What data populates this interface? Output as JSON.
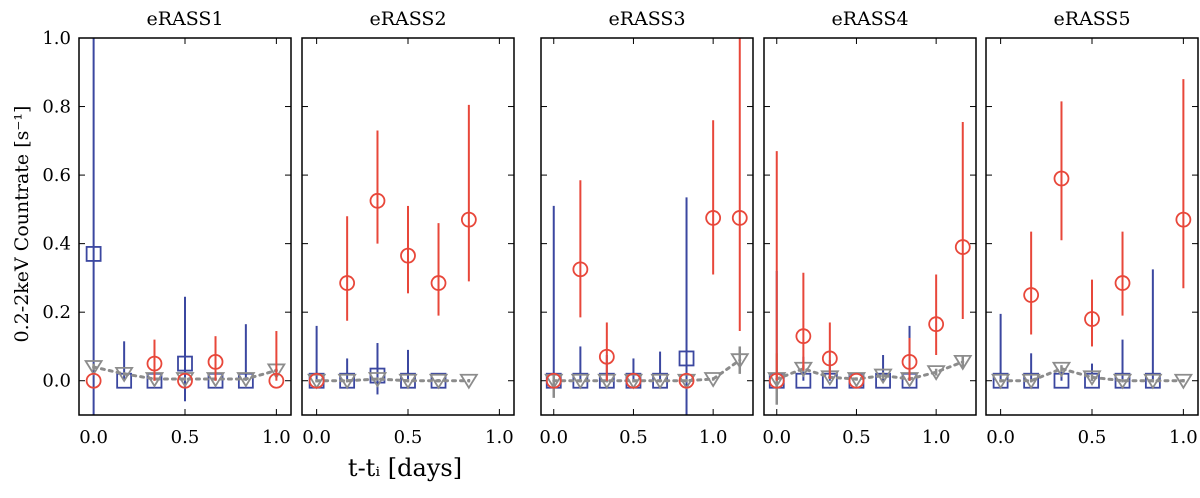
{
  "chart_data": {
    "type": "scatter",
    "ylabel": "0.2-2keV Countrate [s⁻¹]",
    "xlabel": "t-tᵢ [days]",
    "ylim": [
      -0.1,
      1.0
    ],
    "yticks": [
      0.0,
      0.2,
      0.4,
      0.6,
      0.8,
      1.0
    ],
    "ytick_labels": [
      "0.0",
      "0.2",
      "0.4",
      "0.6",
      "0.8",
      "1.0"
    ],
    "colors": {
      "red": "#e8473a",
      "blue": "#3b47a0",
      "gray": "#8c8c8c"
    },
    "panels": [
      {
        "title": "eRASS1",
        "xlim": [
          -0.08,
          1.08
        ],
        "xticks": [
          0.0,
          0.5,
          1.0
        ],
        "xtick_labels": [
          "0.0",
          "0.5",
          "1.0"
        ],
        "series": [
          {
            "name": "red",
            "marker": "circle",
            "points": [
              {
                "x": 0.0,
                "y": 0.0,
                "lo": 0.0,
                "hi": 0.0
              },
              {
                "x": 0.333,
                "y": 0.05,
                "lo": 0.0,
                "hi": 0.12
              },
              {
                "x": 0.5,
                "y": 0.0,
                "lo": 0.0,
                "hi": 0.0
              },
              {
                "x": 0.667,
                "y": 0.055,
                "lo": 0.0,
                "hi": 0.13
              },
              {
                "x": 1.0,
                "y": 0.0,
                "lo": 0.0,
                "hi": 0.145
              }
            ]
          },
          {
            "name": "blue",
            "marker": "square",
            "points": [
              {
                "x": 0.0,
                "y": 0.37,
                "lo": -0.1,
                "hi": 1.0
              },
              {
                "x": 0.167,
                "y": 0.0,
                "lo": 0.0,
                "hi": 0.115
              },
              {
                "x": 0.333,
                "y": 0.0,
                "lo": 0.0,
                "hi": 0.0
              },
              {
                "x": 0.5,
                "y": 0.05,
                "lo": -0.06,
                "hi": 0.245
              },
              {
                "x": 0.667,
                "y": 0.0,
                "lo": 0.0,
                "hi": 0.0
              },
              {
                "x": 0.833,
                "y": 0.0,
                "lo": 0.0,
                "hi": 0.165
              }
            ]
          },
          {
            "name": "gray",
            "marker": "triangle-down",
            "dotted": true,
            "points": [
              {
                "x": 0.0,
                "y": 0.04,
                "lo": 0.03,
                "hi": 0.05
              },
              {
                "x": 0.167,
                "y": 0.02,
                "lo": 0.015,
                "hi": 0.025
              },
              {
                "x": 0.333,
                "y": 0.005,
                "lo": 0.0,
                "hi": 0.01
              },
              {
                "x": 0.5,
                "y": 0.005,
                "lo": 0.0,
                "hi": 0.01
              },
              {
                "x": 0.667,
                "y": 0.005,
                "lo": 0.0,
                "hi": 0.01
              },
              {
                "x": 0.833,
                "y": 0.005,
                "lo": 0.0,
                "hi": 0.01
              },
              {
                "x": 1.0,
                "y": 0.03,
                "lo": 0.025,
                "hi": 0.035
              }
            ]
          }
        ]
      },
      {
        "title": "eRASS2",
        "xlim": [
          -0.08,
          1.08
        ],
        "xticks": [
          0.0,
          0.5,
          1.0
        ],
        "xtick_labels": [
          "0.0",
          "0.5",
          "1.0"
        ],
        "series": [
          {
            "name": "red",
            "marker": "circle",
            "points": [
              {
                "x": 0.0,
                "y": 0.0,
                "lo": 0.0,
                "hi": 0.0
              },
              {
                "x": 0.167,
                "y": 0.285,
                "lo": 0.175,
                "hi": 0.48
              },
              {
                "x": 0.333,
                "y": 0.525,
                "lo": 0.4,
                "hi": 0.73
              },
              {
                "x": 0.5,
                "y": 0.365,
                "lo": 0.255,
                "hi": 0.51
              },
              {
                "x": 0.667,
                "y": 0.285,
                "lo": 0.19,
                "hi": 0.46
              },
              {
                "x": 0.833,
                "y": 0.47,
                "lo": 0.29,
                "hi": 0.805
              }
            ]
          },
          {
            "name": "blue",
            "marker": "square",
            "points": [
              {
                "x": 0.0,
                "y": 0.0,
                "lo": 0.0,
                "hi": 0.16
              },
              {
                "x": 0.167,
                "y": 0.0,
                "lo": 0.0,
                "hi": 0.065
              },
              {
                "x": 0.333,
                "y": 0.015,
                "lo": -0.04,
                "hi": 0.11
              },
              {
                "x": 0.5,
                "y": 0.0,
                "lo": 0.0,
                "hi": 0.09
              },
              {
                "x": 0.667,
                "y": 0.0,
                "lo": 0.0,
                "hi": 0.0
              }
            ]
          },
          {
            "name": "gray",
            "marker": "triangle-down",
            "dotted": true,
            "points": [
              {
                "x": 0.0,
                "y": 0.0,
                "lo": -0.005,
                "hi": 0.005
              },
              {
                "x": 0.167,
                "y": 0.0,
                "lo": -0.005,
                "hi": 0.005
              },
              {
                "x": 0.333,
                "y": 0.005,
                "lo": 0.0,
                "hi": 0.01
              },
              {
                "x": 0.5,
                "y": 0.0,
                "lo": -0.005,
                "hi": 0.005
              },
              {
                "x": 0.667,
                "y": 0.0,
                "lo": -0.005,
                "hi": 0.005
              },
              {
                "x": 0.833,
                "y": 0.0,
                "lo": -0.005,
                "hi": 0.005
              }
            ]
          }
        ]
      },
      {
        "title": "eRASS3",
        "xlim": [
          -0.08,
          1.25
        ],
        "xticks": [
          0.0,
          0.5,
          1.0
        ],
        "xtick_labels": [
          "0.0",
          "0.5",
          "1.0"
        ],
        "series": [
          {
            "name": "red",
            "marker": "circle",
            "points": [
              {
                "x": 0.0,
                "y": 0.0,
                "lo": 0.0,
                "hi": 0.0
              },
              {
                "x": 0.167,
                "y": 0.325,
                "lo": 0.185,
                "hi": 0.585
              },
              {
                "x": 0.333,
                "y": 0.07,
                "lo": 0.0,
                "hi": 0.17
              },
              {
                "x": 0.5,
                "y": 0.0,
                "lo": 0.0,
                "hi": 0.0
              },
              {
                "x": 0.833,
                "y": 0.0,
                "lo": 0.0,
                "hi": 0.0
              },
              {
                "x": 1.0,
                "y": 0.475,
                "lo": 0.31,
                "hi": 0.76
              },
              {
                "x": 1.167,
                "y": 0.475,
                "lo": 0.145,
                "hi": 1.0
              }
            ]
          },
          {
            "name": "blue",
            "marker": "square",
            "points": [
              {
                "x": 0.0,
                "y": 0.0,
                "lo": 0.0,
                "hi": 0.51
              },
              {
                "x": 0.167,
                "y": 0.0,
                "lo": 0.0,
                "hi": 0.1
              },
              {
                "x": 0.333,
                "y": 0.0,
                "lo": 0.0,
                "hi": 0.075
              },
              {
                "x": 0.5,
                "y": 0.0,
                "lo": 0.0,
                "hi": 0.065
              },
              {
                "x": 0.667,
                "y": 0.0,
                "lo": 0.0,
                "hi": 0.085
              },
              {
                "x": 0.833,
                "y": 0.065,
                "lo": -0.1,
                "hi": 0.535
              }
            ]
          },
          {
            "name": "gray",
            "marker": "triangle-down",
            "dotted": true,
            "points": [
              {
                "x": 0.0,
                "y": 0.0,
                "lo": -0.05,
                "hi": 0.02
              },
              {
                "x": 0.167,
                "y": 0.0,
                "lo": -0.005,
                "hi": 0.005
              },
              {
                "x": 0.333,
                "y": 0.0,
                "lo": -0.005,
                "hi": 0.005
              },
              {
                "x": 0.5,
                "y": 0.0,
                "lo": -0.005,
                "hi": 0.005
              },
              {
                "x": 0.667,
                "y": 0.0,
                "lo": -0.005,
                "hi": 0.005
              },
              {
                "x": 0.833,
                "y": 0.0,
                "lo": -0.005,
                "hi": 0.005
              },
              {
                "x": 1.0,
                "y": 0.005,
                "lo": 0.0,
                "hi": 0.01
              },
              {
                "x": 1.167,
                "y": 0.06,
                "lo": 0.02,
                "hi": 0.1
              }
            ]
          }
        ]
      },
      {
        "title": "eRASS4",
        "xlim": [
          -0.08,
          1.25
        ],
        "xticks": [
          0.0,
          0.5,
          1.0
        ],
        "xtick_labels": [
          "0.0",
          "0.5",
          "1.0"
        ],
        "series": [
          {
            "name": "red",
            "marker": "circle",
            "points": [
              {
                "x": 0.0,
                "y": 0.0,
                "lo": 0.0,
                "hi": 0.67
              },
              {
                "x": 0.167,
                "y": 0.13,
                "lo": 0.03,
                "hi": 0.315
              },
              {
                "x": 0.333,
                "y": 0.065,
                "lo": 0.005,
                "hi": 0.17
              },
              {
                "x": 0.5,
                "y": 0.0,
                "lo": 0.0,
                "hi": 0.0
              },
              {
                "x": 0.833,
                "y": 0.055,
                "lo": 0.0,
                "hi": 0.125
              },
              {
                "x": 1.0,
                "y": 0.165,
                "lo": 0.075,
                "hi": 0.31
              },
              {
                "x": 1.167,
                "y": 0.39,
                "lo": 0.18,
                "hi": 0.755
              }
            ]
          },
          {
            "name": "blue",
            "marker": "square",
            "points": [
              {
                "x": 0.0,
                "y": 0.0,
                "lo": 0.0,
                "hi": 0.32
              },
              {
                "x": 0.167,
                "y": 0.0,
                "lo": 0.0,
                "hi": 0.07
              },
              {
                "x": 0.333,
                "y": 0.0,
                "lo": 0.0,
                "hi": 0.06
              },
              {
                "x": 0.5,
                "y": 0.0,
                "lo": 0.0,
                "hi": 0.0
              },
              {
                "x": 0.667,
                "y": 0.0,
                "lo": 0.0,
                "hi": 0.075
              },
              {
                "x": 0.833,
                "y": 0.0,
                "lo": 0.0,
                "hi": 0.16
              }
            ]
          },
          {
            "name": "gray",
            "marker": "triangle-down",
            "dotted": true,
            "points": [
              {
                "x": 0.0,
                "y": 0.005,
                "lo": -0.07,
                "hi": 0.08
              },
              {
                "x": 0.167,
                "y": 0.035,
                "lo": 0.025,
                "hi": 0.045
              },
              {
                "x": 0.333,
                "y": 0.01,
                "lo": 0.005,
                "hi": 0.015
              },
              {
                "x": 0.5,
                "y": 0.005,
                "lo": 0.0,
                "hi": 0.01
              },
              {
                "x": 0.667,
                "y": 0.015,
                "lo": 0.005,
                "hi": 0.025
              },
              {
                "x": 0.833,
                "y": 0.005,
                "lo": 0.0,
                "hi": 0.01
              },
              {
                "x": 1.0,
                "y": 0.025,
                "lo": 0.015,
                "hi": 0.035
              },
              {
                "x": 1.167,
                "y": 0.055,
                "lo": 0.035,
                "hi": 0.075
              }
            ]
          }
        ]
      },
      {
        "title": "eRASS5",
        "xlim": [
          -0.08,
          1.08
        ],
        "xticks": [
          0.0,
          0.5,
          1.0
        ],
        "xtick_labels": [
          "0.0",
          "0.5",
          "1.0"
        ],
        "series": [
          {
            "name": "red",
            "marker": "circle",
            "points": [
              {
                "x": 0.167,
                "y": 0.25,
                "lo": 0.135,
                "hi": 0.435
              },
              {
                "x": 0.333,
                "y": 0.59,
                "lo": 0.41,
                "hi": 0.815
              },
              {
                "x": 0.5,
                "y": 0.18,
                "lo": 0.1,
                "hi": 0.295
              },
              {
                "x": 0.667,
                "y": 0.285,
                "lo": 0.19,
                "hi": 0.435
              },
              {
                "x": 1.0,
                "y": 0.47,
                "lo": 0.27,
                "hi": 0.88
              }
            ]
          },
          {
            "name": "blue",
            "marker": "square",
            "points": [
              {
                "x": 0.0,
                "y": 0.0,
                "lo": 0.0,
                "hi": 0.195
              },
              {
                "x": 0.167,
                "y": 0.0,
                "lo": 0.0,
                "hi": 0.08
              },
              {
                "x": 0.333,
                "y": 0.0,
                "lo": 0.0,
                "hi": 0.045
              },
              {
                "x": 0.5,
                "y": 0.0,
                "lo": 0.0,
                "hi": 0.05
              },
              {
                "x": 0.667,
                "y": 0.0,
                "lo": 0.0,
                "hi": 0.12
              },
              {
                "x": 0.833,
                "y": 0.0,
                "lo": 0.0,
                "hi": 0.325
              }
            ]
          },
          {
            "name": "gray",
            "marker": "triangle-down",
            "dotted": true,
            "points": [
              {
                "x": 0.0,
                "y": 0.0,
                "lo": -0.005,
                "hi": 0.005
              },
              {
                "x": 0.167,
                "y": 0.0,
                "lo": -0.005,
                "hi": 0.005
              },
              {
                "x": 0.333,
                "y": 0.035,
                "lo": 0.025,
                "hi": 0.045
              },
              {
                "x": 0.5,
                "y": 0.01,
                "lo": 0.0,
                "hi": 0.02
              },
              {
                "x": 0.667,
                "y": 0.0,
                "lo": -0.005,
                "hi": 0.005
              },
              {
                "x": 0.833,
                "y": 0.0,
                "lo": -0.005,
                "hi": 0.005
              },
              {
                "x": 1.0,
                "y": 0.0,
                "lo": -0.005,
                "hi": 0.005
              }
            ]
          }
        ]
      }
    ]
  }
}
